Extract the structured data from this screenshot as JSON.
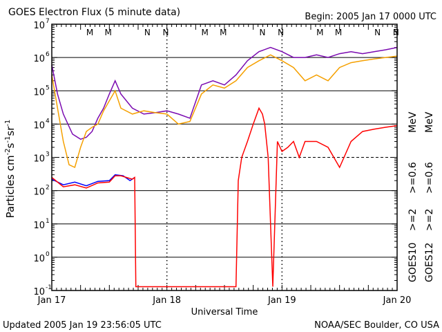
{
  "header": {
    "title": "GOES Electron Flux (5 minute data)",
    "begin": "Begin: 2005 Jan 17 0000 UTC"
  },
  "footer": {
    "updated": "Updated 2005 Jan 19 23:56:05 UTC",
    "credit": "NOAA/SEC Boulder, CO USA"
  },
  "colors": {
    "goes10_ge2": "#0000ff",
    "goes10_ge06": "#7a0ab0",
    "goes12_ge2": "#ff0000",
    "goes12_ge06": "#f5a000",
    "grid": "#000000"
  },
  "chart_data": {
    "type": "line",
    "title": "GOES Electron Flux (5 minute data)",
    "xlabel": "Universal Time",
    "ylabel_base": "Particles cm",
    "y_scale": "log",
    "ylim": [
      0.1,
      10000000
    ],
    "xlim_days": [
      0,
      3
    ],
    "x_ticks": [
      "Jan 17",
      "Jan 18",
      "Jan 19",
      "Jan 20"
    ],
    "y_ticks": [
      "10",
      "10",
      "10",
      "10",
      "10",
      "10",
      "10",
      "10",
      "10"
    ],
    "y_tick_exponents": [
      "-1",
      "0",
      "1",
      "2",
      "3",
      "4",
      "5",
      "6",
      "7"
    ],
    "dashed_threshold": 1000,
    "night_markers_top": [
      "M",
      "M",
      "N",
      "N",
      "M",
      "M",
      "N",
      "N",
      "M",
      "M",
      "N",
      "N"
    ],
    "night_marker_colors": [
      "#ff0000",
      "#0000ff",
      "#ff0000",
      "#0000ff",
      "#ff0000",
      "#0000ff",
      "#ff0000",
      "#0000ff",
      "#ff0000",
      "#0000ff",
      "#ff0000",
      "#0000ff"
    ],
    "night_marker_days": [
      0.33,
      0.49,
      0.83,
      0.99,
      1.33,
      1.49,
      1.83,
      1.99,
      2.33,
      2.49,
      2.83,
      2.99
    ],
    "legend": {
      "goes10": "GOES10",
      "goes12": "GOES12",
      "goes10_ge2": ">=2",
      "goes10_ge06": ">=0.6",
      "goes12_ge2": ">=2",
      "goes12_ge06": ">=0.6",
      "mev": "MeV"
    },
    "series": [
      {
        "name": "GOES10 >=2 MeV",
        "color": "#0000ff",
        "points": [
          [
            0,
            220
          ],
          [
            0.1,
            150
          ],
          [
            0.2,
            180
          ],
          [
            0.3,
            140
          ],
          [
            0.4,
            190
          ],
          [
            0.5,
            200
          ],
          [
            0.55,
            300
          ],
          [
            0.62,
            280
          ],
          [
            0.68,
            200
          ],
          [
            0.72,
            250
          ]
        ]
      },
      {
        "name": "GOES12 >=2 MeV",
        "color": "#ff0000",
        "points": [
          [
            0,
            250
          ],
          [
            0.1,
            130
          ],
          [
            0.2,
            150
          ],
          [
            0.3,
            120
          ],
          [
            0.4,
            170
          ],
          [
            0.5,
            180
          ],
          [
            0.55,
            280
          ],
          [
            0.6,
            280
          ],
          [
            0.7,
            220
          ],
          [
            0.72,
            250
          ],
          [
            0.73,
            0.13
          ],
          [
            1.3,
            0.13
          ],
          [
            1.6,
            0.13
          ],
          [
            1.62,
            200
          ],
          [
            1.65,
            1000
          ],
          [
            1.7,
            3000
          ],
          [
            1.75,
            10000
          ],
          [
            1.8,
            30000
          ],
          [
            1.83,
            20000
          ],
          [
            1.85,
            10000
          ],
          [
            1.88,
            1000
          ],
          [
            1.92,
            0.13
          ],
          [
            1.96,
            3000
          ],
          [
            2.0,
            1500
          ],
          [
            2.05,
            2000
          ],
          [
            2.1,
            3000
          ],
          [
            2.15,
            1000
          ],
          [
            2.2,
            3000
          ],
          [
            2.3,
            3000
          ],
          [
            2.4,
            2000
          ],
          [
            2.5,
            500
          ],
          [
            2.6,
            3000
          ],
          [
            2.7,
            6000
          ],
          [
            2.8,
            7000
          ],
          [
            2.9,
            8000
          ],
          [
            3.0,
            9000
          ]
        ]
      },
      {
        "name": "GOES10 >=0.6 MeV",
        "color": "#7a0ab0",
        "points": [
          [
            0,
            600000
          ],
          [
            0.05,
            80000
          ],
          [
            0.1,
            20000
          ],
          [
            0.18,
            5000
          ],
          [
            0.25,
            3500
          ],
          [
            0.3,
            4000
          ],
          [
            0.35,
            6000
          ],
          [
            0.4,
            15000
          ],
          [
            0.45,
            30000
          ],
          [
            0.5,
            80000
          ],
          [
            0.55,
            200000
          ],
          [
            0.6,
            80000
          ],
          [
            0.7,
            30000
          ],
          [
            0.8,
            20000
          ],
          [
            0.9,
            22000
          ],
          [
            1.0,
            25000
          ],
          [
            1.1,
            20000
          ],
          [
            1.2,
            15000
          ],
          [
            1.3,
            150000
          ],
          [
            1.4,
            200000
          ],
          [
            1.5,
            150000
          ],
          [
            1.6,
            300000
          ],
          [
            1.7,
            800000
          ],
          [
            1.8,
            1500000
          ],
          [
            1.9,
            2000000
          ],
          [
            2.0,
            1500000
          ],
          [
            2.1,
            1000000
          ],
          [
            2.2,
            1000000
          ],
          [
            2.3,
            1200000
          ],
          [
            2.4,
            1000000
          ],
          [
            2.5,
            1300000
          ],
          [
            2.6,
            1500000
          ],
          [
            2.7,
            1300000
          ],
          [
            2.8,
            1500000
          ],
          [
            2.9,
            1700000
          ],
          [
            3.0,
            2000000
          ]
        ]
      },
      {
        "name": "GOES12 >=0.6 MeV",
        "color": "#f5a000",
        "points": [
          [
            0,
            300000
          ],
          [
            0.05,
            30000
          ],
          [
            0.1,
            3000
          ],
          [
            0.15,
            600
          ],
          [
            0.2,
            500
          ],
          [
            0.25,
            2000
          ],
          [
            0.3,
            6000
          ],
          [
            0.35,
            8000
          ],
          [
            0.4,
            10000
          ],
          [
            0.45,
            25000
          ],
          [
            0.5,
            50000
          ],
          [
            0.55,
            100000
          ],
          [
            0.6,
            30000
          ],
          [
            0.7,
            20000
          ],
          [
            0.8,
            25000
          ],
          [
            0.9,
            22000
          ],
          [
            1.0,
            20000
          ],
          [
            1.1,
            10000
          ],
          [
            1.2,
            12000
          ],
          [
            1.3,
            80000
          ],
          [
            1.4,
            150000
          ],
          [
            1.5,
            120000
          ],
          [
            1.6,
            200000
          ],
          [
            1.7,
            500000
          ],
          [
            1.8,
            800000
          ],
          [
            1.9,
            1200000
          ],
          [
            2.0,
            800000
          ],
          [
            2.1,
            500000
          ],
          [
            2.2,
            200000
          ],
          [
            2.3,
            300000
          ],
          [
            2.4,
            200000
          ],
          [
            2.5,
            500000
          ],
          [
            2.6,
            700000
          ],
          [
            2.7,
            800000
          ],
          [
            2.8,
            900000
          ],
          [
            2.9,
            1000000
          ],
          [
            3.0,
            1100000
          ]
        ]
      }
    ]
  }
}
